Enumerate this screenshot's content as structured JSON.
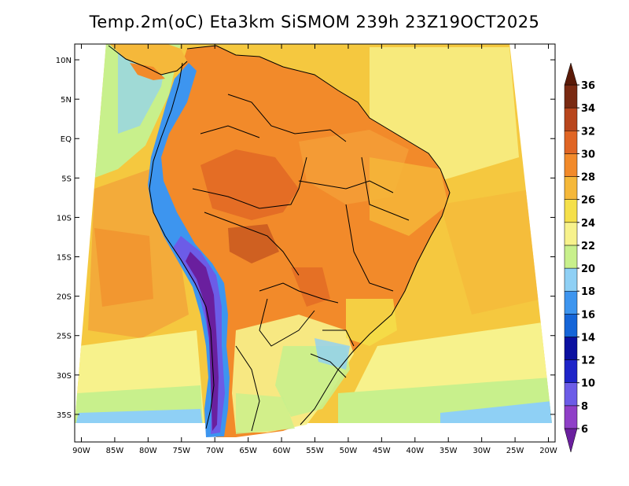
{
  "title": "Temp.2m(oC) Eta3km SiSMOM 239h 23Z19OCT2025",
  "map": {
    "lon_range": [
      -91,
      -19
    ],
    "lat_range": [
      -38.5,
      12
    ],
    "lon_ticks": [
      {
        "value": -90,
        "label": "90W"
      },
      {
        "value": -85,
        "label": "85W"
      },
      {
        "value": -80,
        "label": "80W"
      },
      {
        "value": -75,
        "label": "75W"
      },
      {
        "value": -70,
        "label": "70W"
      },
      {
        "value": -65,
        "label": "65W"
      },
      {
        "value": -60,
        "label": "60W"
      },
      {
        "value": -55,
        "label": "55W"
      },
      {
        "value": -50,
        "label": "50W"
      },
      {
        "value": -45,
        "label": "45W"
      },
      {
        "value": -40,
        "label": "40W"
      },
      {
        "value": -35,
        "label": "35W"
      },
      {
        "value": -30,
        "label": "30W"
      },
      {
        "value": -25,
        "label": "25W"
      },
      {
        "value": -20,
        "label": "20W"
      }
    ],
    "lat_ticks": [
      {
        "value": 10,
        "label": "10N"
      },
      {
        "value": 5,
        "label": "5N"
      },
      {
        "value": 0,
        "label": "EQ"
      },
      {
        "value": -5,
        "label": "5S"
      },
      {
        "value": -10,
        "label": "10S"
      },
      {
        "value": -15,
        "label": "15S"
      },
      {
        "value": -20,
        "label": "20S"
      },
      {
        "value": -25,
        "label": "25S"
      },
      {
        "value": -30,
        "label": "30S"
      },
      {
        "value": -35,
        "label": "35S"
      }
    ]
  },
  "colorbar": {
    "levels": [
      {
        "label": "6",
        "color": "#6a1f9e"
      },
      {
        "label": "8",
        "color": "#8f3fc7"
      },
      {
        "label": "10",
        "color": "#6c5ce7"
      },
      {
        "label": "12",
        "color": "#1e24c8"
      },
      {
        "label": "14",
        "color": "#0b10a0"
      },
      {
        "label": "16",
        "color": "#1565d8"
      },
      {
        "label": "18",
        "color": "#3d95ef"
      },
      {
        "label": "20",
        "color": "#8fd0f5"
      },
      {
        "label": "22",
        "color": "#c8f08c"
      },
      {
        "label": "24",
        "color": "#f7f28c"
      },
      {
        "label": "26",
        "color": "#f5e04a"
      },
      {
        "label": "28",
        "color": "#f5b83a"
      },
      {
        "label": "30",
        "color": "#f28a2a"
      },
      {
        "label": "32",
        "color": "#e06524"
      },
      {
        "label": "34",
        "color": "#b8451c"
      },
      {
        "label": "36",
        "color": "#7a2a12"
      }
    ],
    "underflow_color": "#6a1f9e",
    "overflow_color": "#5a1a08"
  }
}
